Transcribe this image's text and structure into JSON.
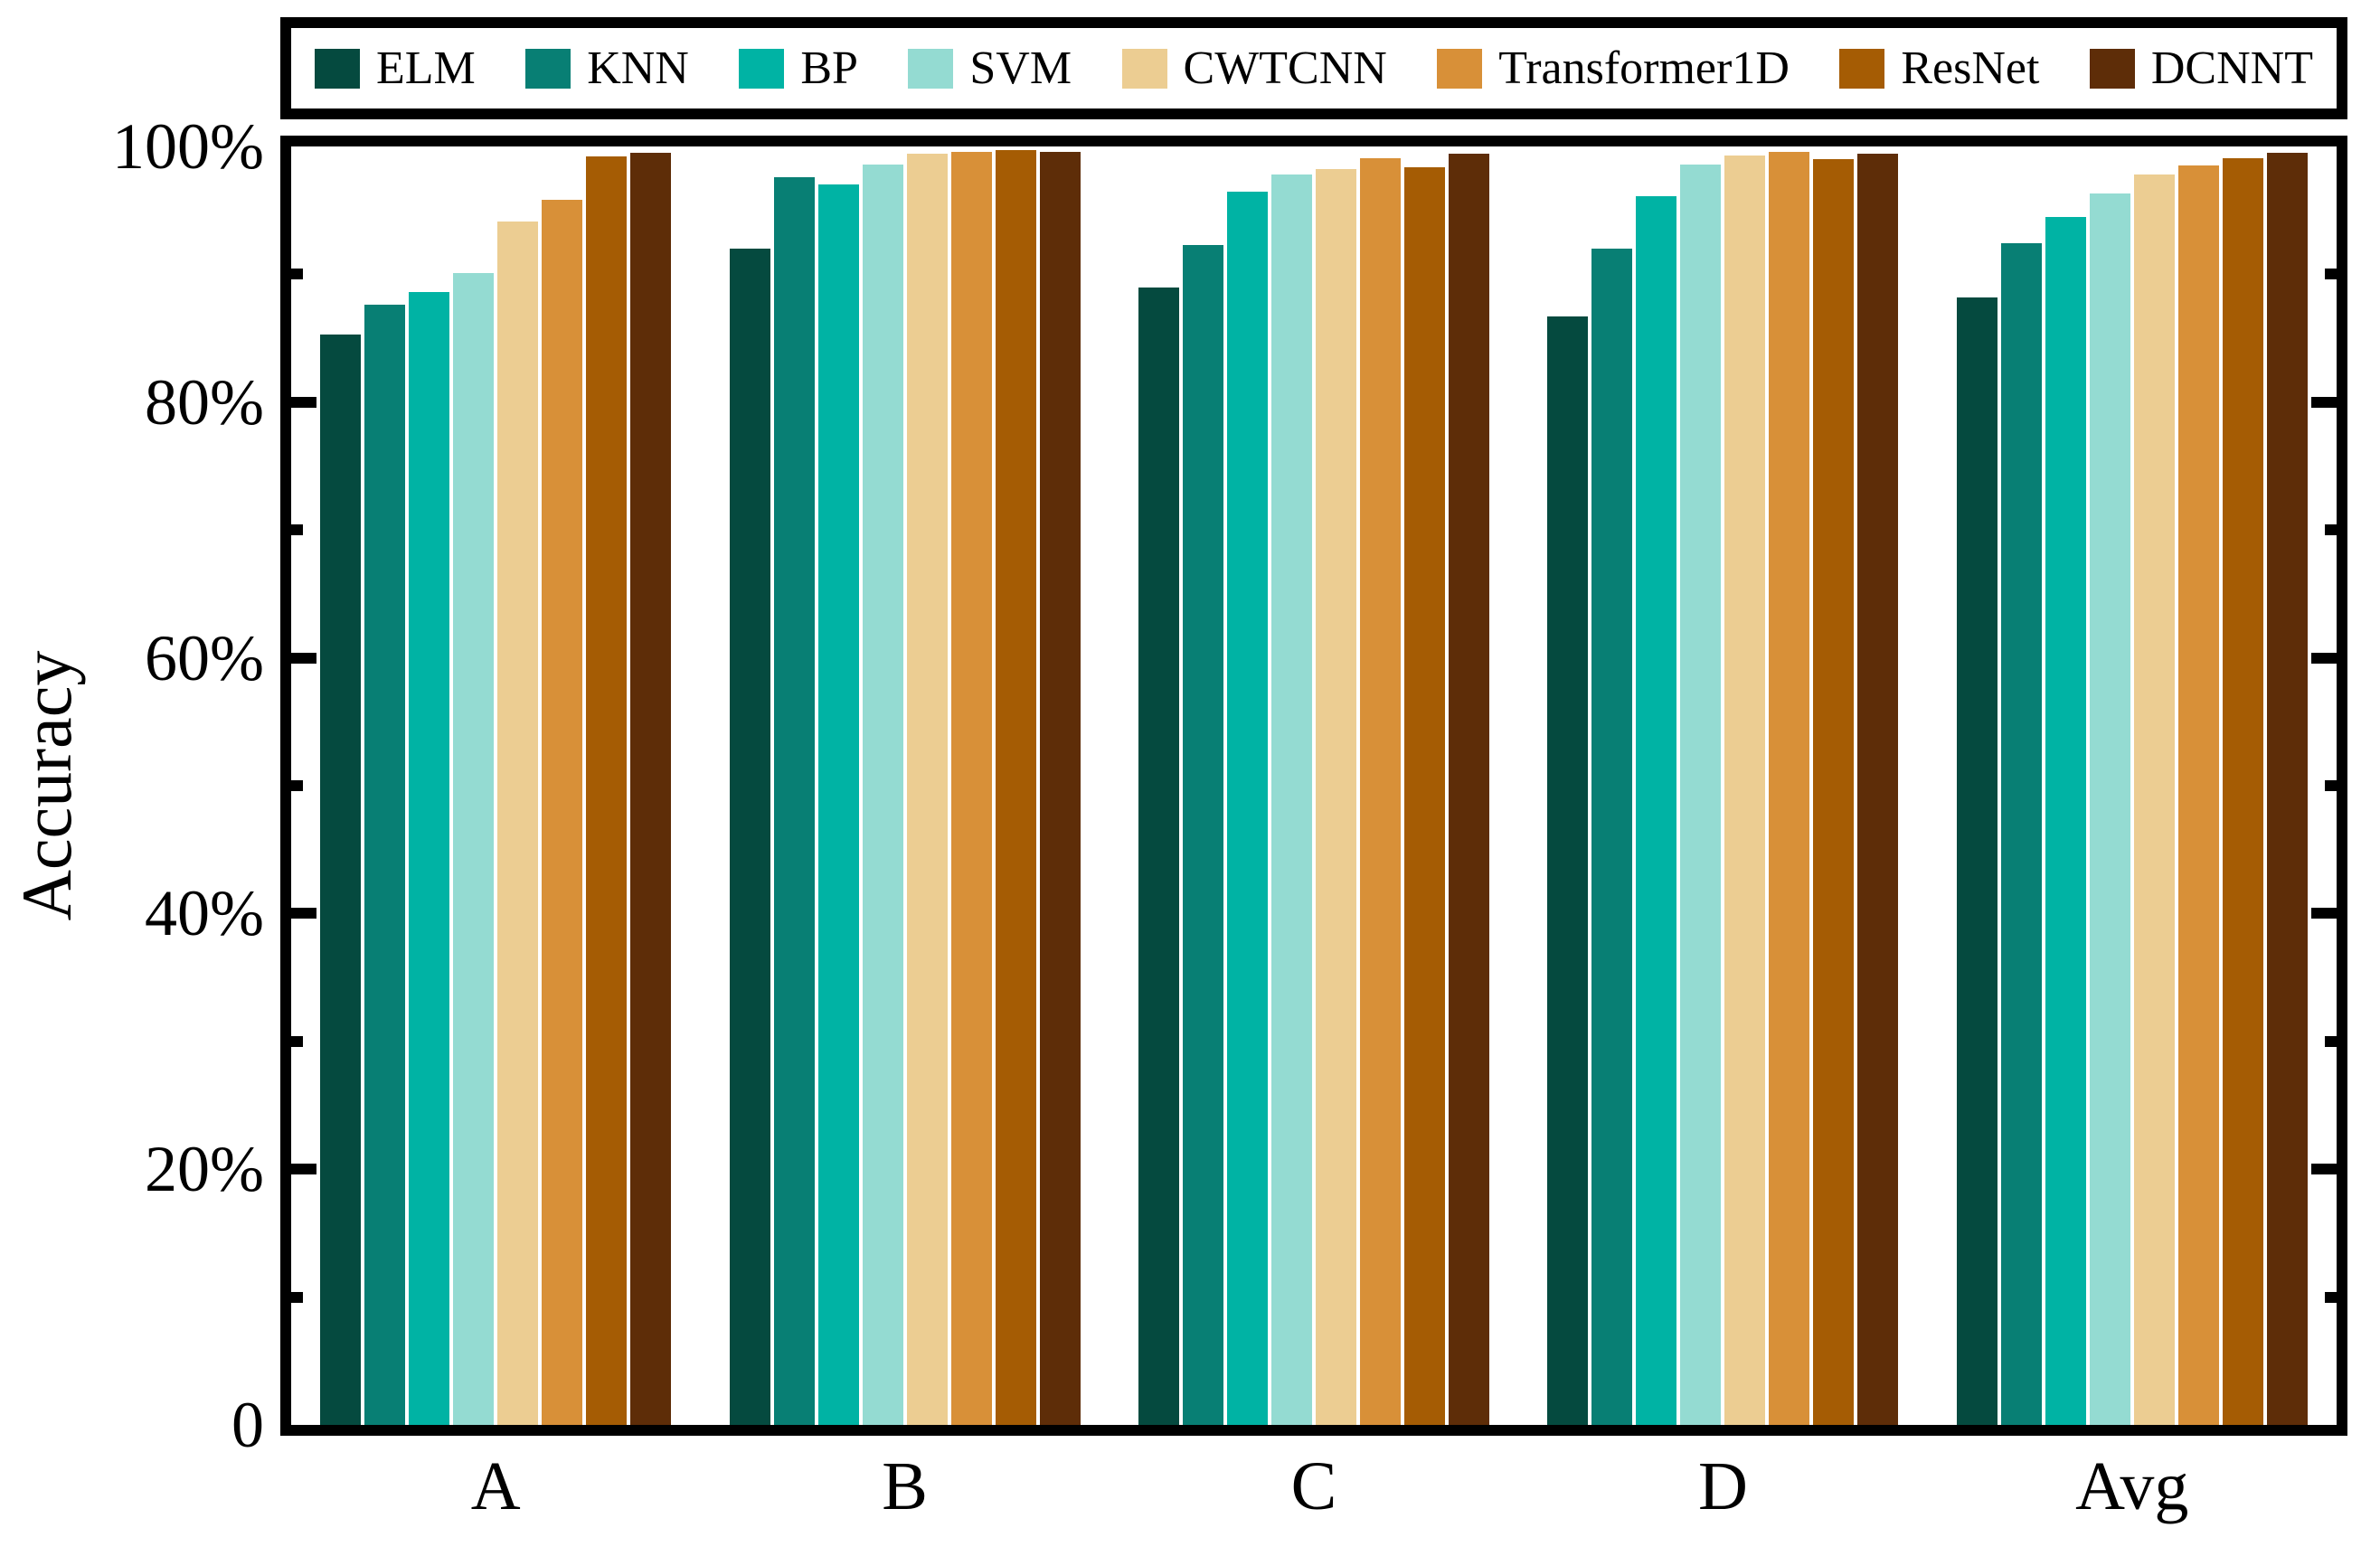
{
  "figure": {
    "background": "#ffffff",
    "frame_color": "#000000"
  },
  "chart_data": {
    "type": "bar",
    "title": "",
    "xlabel": "",
    "ylabel": "Accuracy",
    "categories": [
      "A",
      "B",
      "C",
      "D",
      "Avg"
    ],
    "ylim": [
      0,
      100
    ],
    "grid": false,
    "legend_position": "top",
    "y_axis": {
      "major_ticks": [
        {
          "value": 0,
          "label": "0"
        },
        {
          "value": 20,
          "label": "20%"
        },
        {
          "value": 40,
          "label": "40%"
        },
        {
          "value": 60,
          "label": "60%"
        },
        {
          "value": 80,
          "label": "80%"
        },
        {
          "value": 100,
          "label": "100%"
        }
      ],
      "minor_ticks": [
        10,
        30,
        50,
        70,
        90
      ]
    },
    "series": [
      {
        "name": "ELM",
        "color": "#054A3F",
        "values": [
          85.3,
          92.0,
          89.0,
          86.7,
          88.2
        ]
      },
      {
        "name": "KNN",
        "color": "#087F74",
        "values": [
          87.6,
          97.6,
          92.3,
          92.0,
          92.4
        ]
      },
      {
        "name": "BP",
        "color": "#00B3A4",
        "values": [
          88.6,
          97.0,
          96.5,
          96.1,
          94.5
        ]
      },
      {
        "name": "SVM",
        "color": "#94DBD2",
        "values": [
          90.1,
          98.6,
          97.8,
          98.6,
          96.3
        ]
      },
      {
        "name": "CWTCNN",
        "color": "#ECCD92",
        "values": [
          94.1,
          99.4,
          98.2,
          99.3,
          97.8
        ]
      },
      {
        "name": "Transformer1D",
        "color": "#D89038",
        "values": [
          95.8,
          99.6,
          99.1,
          99.6,
          98.5
        ]
      },
      {
        "name": "ResNet",
        "color": "#A55C04",
        "values": [
          99.2,
          99.7,
          98.4,
          99.0,
          99.1
        ]
      },
      {
        "name": "DCNNT",
        "color": "#5E2D08",
        "values": [
          99.5,
          99.6,
          99.4,
          99.4,
          99.5
        ]
      }
    ]
  }
}
